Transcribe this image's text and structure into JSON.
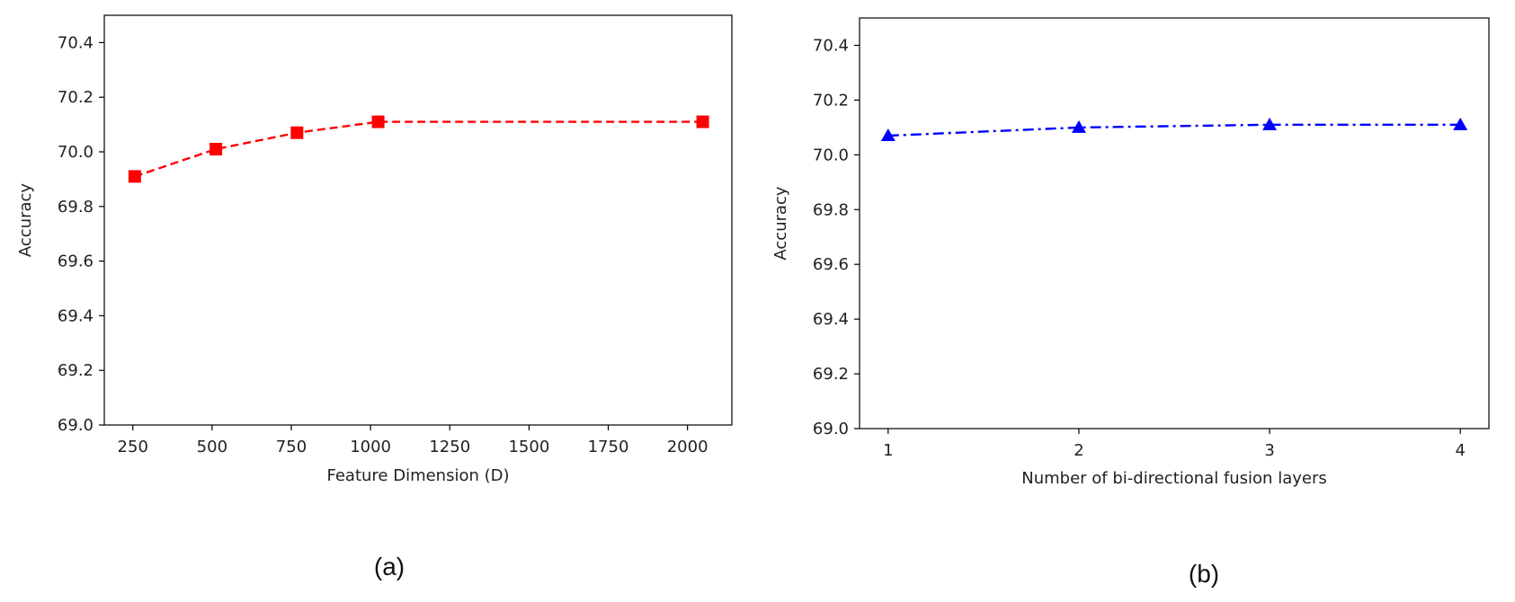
{
  "chart_data": [
    {
      "type": "line",
      "caption": "(a)",
      "xlabel": "Feature Dimension (D)",
      "ylabel": "Accuracy",
      "xlim": [
        160,
        2140
      ],
      "ylim": [
        69.0,
        70.5
      ],
      "xticks": [
        250,
        500,
        750,
        1000,
        1250,
        1500,
        1750,
        2000
      ],
      "xtick_labels": [
        "250",
        "500",
        "750",
        "1000",
        "1250",
        "1500",
        "1750",
        "2000"
      ],
      "yticks": [
        69.0,
        69.2,
        69.4,
        69.6,
        69.8,
        70.0,
        70.2,
        70.4
      ],
      "ytick_labels": [
        "69.0",
        "69.2",
        "69.4",
        "69.6",
        "69.8",
        "70.0",
        "70.2",
        "70.4"
      ],
      "grid": false,
      "series": [
        {
          "x": [
            256,
            512,
            768,
            1024,
            2048
          ],
          "values": [
            69.91,
            70.01,
            70.07,
            70.11,
            70.11
          ],
          "color": "#ff0000",
          "line_style": "dashed",
          "marker": "square"
        }
      ]
    },
    {
      "type": "line",
      "caption": "(b)",
      "xlabel": "Number of bi-directional fusion layers",
      "ylabel": "Accuracy",
      "xlim": [
        0.85,
        4.15
      ],
      "ylim": [
        69.0,
        70.5
      ],
      "xticks": [
        1,
        2,
        3,
        4
      ],
      "xtick_labels": [
        "1",
        "2",
        "3",
        "4"
      ],
      "yticks": [
        69.0,
        69.2,
        69.4,
        69.6,
        69.8,
        70.0,
        70.2,
        70.4
      ],
      "ytick_labels": [
        "69.0",
        "69.2",
        "69.4",
        "69.6",
        "69.8",
        "70.0",
        "70.2",
        "70.4"
      ],
      "grid": false,
      "series": [
        {
          "x": [
            1,
            2,
            3,
            4
          ],
          "values": [
            70.07,
            70.1,
            70.11,
            70.11
          ],
          "color": "#0000ff",
          "line_style": "dashdot",
          "marker": "triangle"
        }
      ]
    }
  ]
}
